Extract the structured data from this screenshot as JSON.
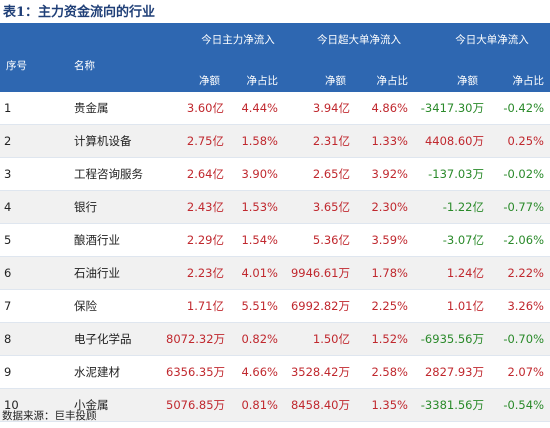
{
  "caption": "表1：主力资金流向的行业",
  "headers": {
    "idx": "序号",
    "name": "名称",
    "groups": [
      "今日主力净流入",
      "今日超大单净流入",
      "今日大单净流入"
    ],
    "sub": [
      "净额",
      "净占比",
      "净额",
      "净占比",
      "净额",
      "净占比"
    ]
  },
  "rows": [
    {
      "idx": "1",
      "name": "贵金属",
      "cells": [
        "3.60亿",
        "4.44%",
        "3.94亿",
        "4.86%",
        "-3417.30万",
        "-0.42%"
      ]
    },
    {
      "idx": "2",
      "name": "计算机设备",
      "cells": [
        "2.75亿",
        "1.58%",
        "2.31亿",
        "1.33%",
        "4408.60万",
        "0.25%"
      ]
    },
    {
      "idx": "3",
      "name": "工程咨询服务",
      "cells": [
        "2.64亿",
        "3.90%",
        "2.65亿",
        "3.92%",
        "-137.03万",
        "-0.02%"
      ]
    },
    {
      "idx": "4",
      "name": "银行",
      "cells": [
        "2.43亿",
        "1.53%",
        "3.65亿",
        "2.30%",
        "-1.22亿",
        "-0.77%"
      ]
    },
    {
      "idx": "5",
      "name": "酿酒行业",
      "cells": [
        "2.29亿",
        "1.54%",
        "5.36亿",
        "3.59%",
        "-3.07亿",
        "-2.06%"
      ]
    },
    {
      "idx": "6",
      "name": "石油行业",
      "cells": [
        "2.23亿",
        "4.01%",
        "9946.61万",
        "1.78%",
        "1.24亿",
        "2.22%"
      ]
    },
    {
      "idx": "7",
      "name": "保险",
      "cells": [
        "1.71亿",
        "5.51%",
        "6992.82万",
        "2.25%",
        "1.01亿",
        "3.26%"
      ]
    },
    {
      "idx": "8",
      "name": "电子化学品",
      "cells": [
        "8072.32万",
        "0.82%",
        "1.50亿",
        "1.52%",
        "-6935.56万",
        "-0.70%"
      ]
    },
    {
      "idx": "9",
      "name": "水泥建材",
      "cells": [
        "6356.35万",
        "4.66%",
        "3528.42万",
        "2.58%",
        "2827.93万",
        "2.07%"
      ]
    },
    {
      "idx": "10",
      "name": "小金属",
      "cells": [
        "5076.85万",
        "0.81%",
        "8458.40万",
        "1.35%",
        "-3381.56万",
        "-0.54%"
      ]
    }
  ],
  "source": "数据来源：巨丰投顾",
  "colors": {
    "header_bg": "#2e67b1",
    "positive": "#c0282e",
    "negative": "#2a8a2a"
  }
}
